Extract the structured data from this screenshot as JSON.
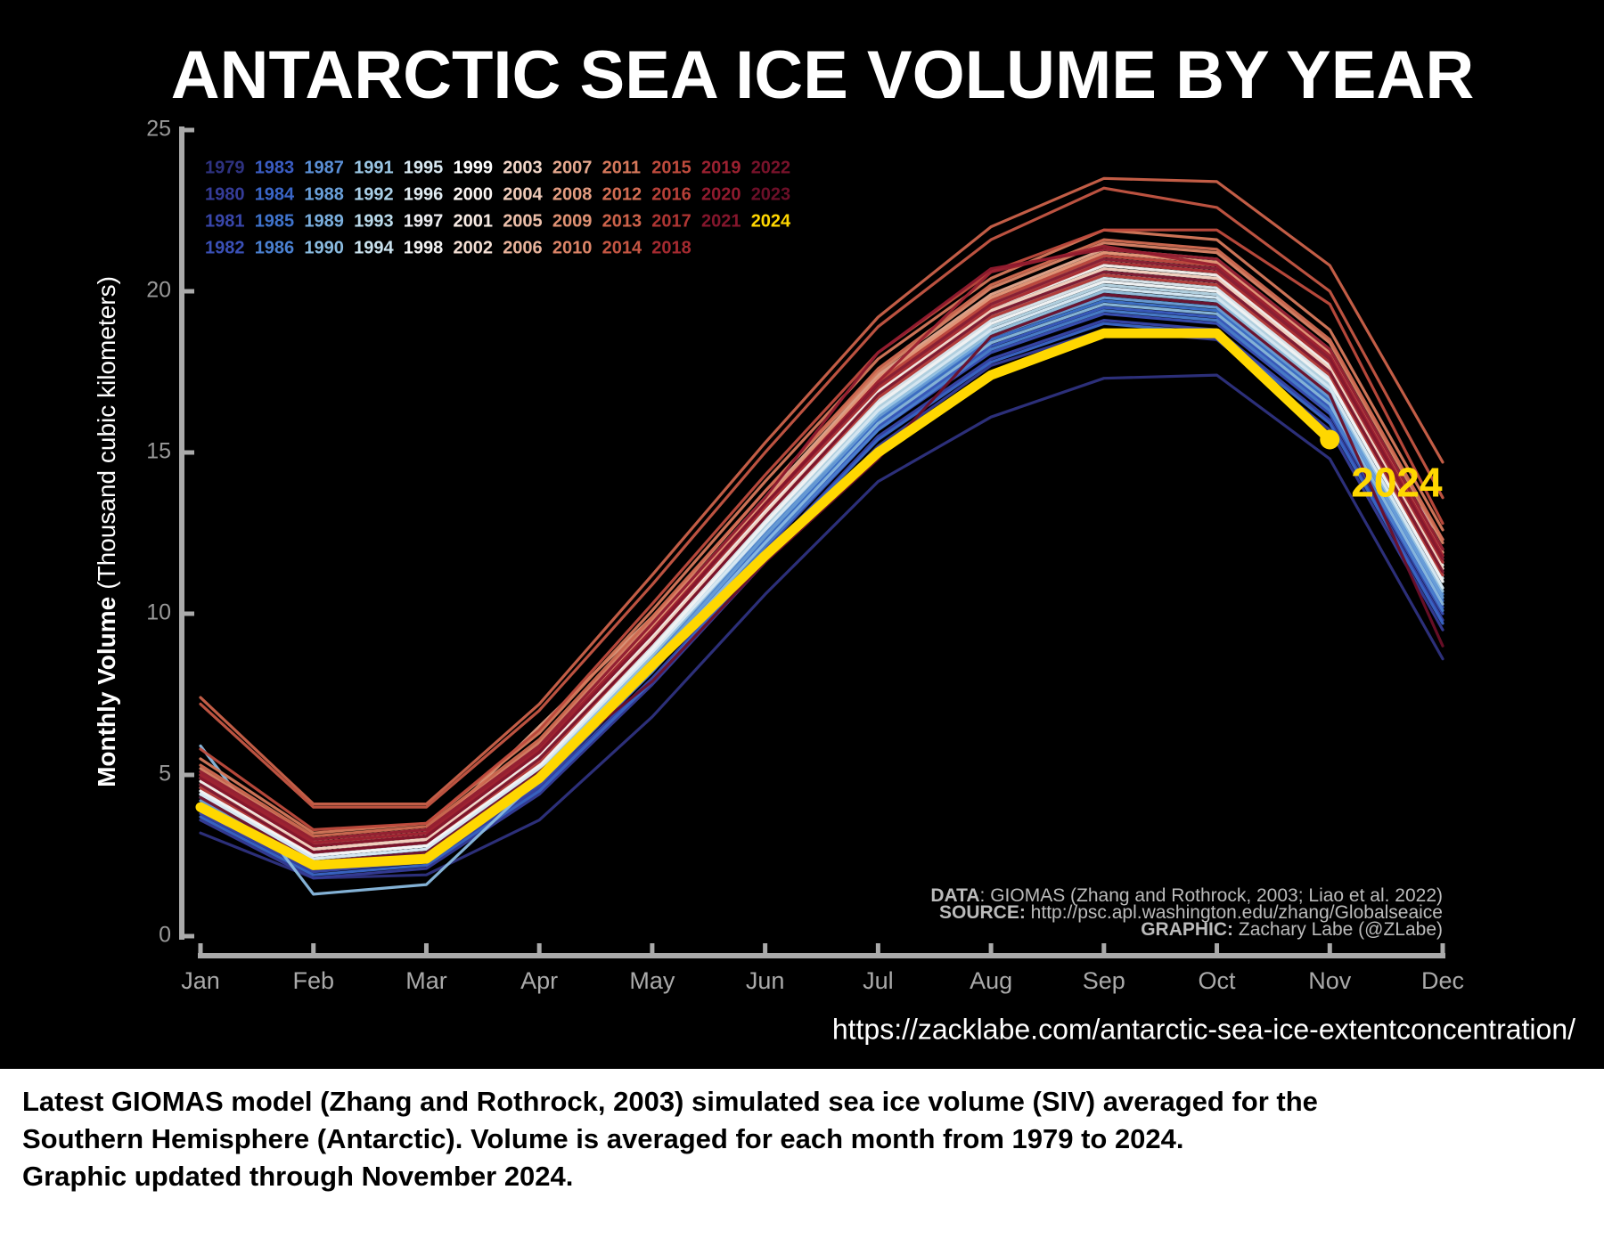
{
  "chart_data": {
    "type": "line",
    "title": "ANTARCTIC SEA ICE VOLUME BY YEAR",
    "ylabel": [
      "Monthly Volume",
      "(Thousand cubic kilometers)"
    ],
    "categories": [
      "Jan",
      "Feb",
      "Mar",
      "Apr",
      "May",
      "Jun",
      "Jul",
      "Aug",
      "Sep",
      "Oct",
      "Nov",
      "Dec"
    ],
    "ylim": [
      0,
      25
    ],
    "yticks": [
      0,
      5,
      10,
      15,
      20,
      25
    ],
    "credits": [
      [
        "DATA",
        ": GIOMAS (Zhang and Rothrock, 2003; Liao et al. 2022)"
      ],
      [
        "SOURCE:",
        " http://psc.apl.washington.edu/zhang/Globalseaice"
      ],
      [
        "GRAPHIC:",
        " Zachary Labe (@ZLabe)"
      ]
    ],
    "url": "https://zacklabe.com/antarctic-sea-ice-extentconcentration/",
    "series": [
      {
        "name": "1979",
        "color": "#2e3280",
        "values": [
          3.2,
          1.8,
          1.9,
          3.6,
          6.8,
          10.6,
          14.1,
          16.1,
          17.3,
          17.4,
          14.8,
          8.6
        ]
      },
      {
        "name": "1980",
        "color": "#353c98",
        "values": [
          3.6,
          1.8,
          2.1,
          4.4,
          7.8,
          11.6,
          15.2,
          17.7,
          18.8,
          18.5,
          15.7,
          9.5
        ]
      },
      {
        "name": "1981",
        "color": "#3846aa",
        "values": [
          3.8,
          2.0,
          2.3,
          4.6,
          8.0,
          11.8,
          15.5,
          17.9,
          19.1,
          18.8,
          16.0,
          9.8
        ]
      },
      {
        "name": "1982",
        "color": "#3a50b6",
        "values": [
          3.9,
          2.1,
          2.4,
          4.7,
          8.2,
          12.0,
          15.7,
          18.1,
          19.3,
          19.0,
          16.2,
          10.0
        ]
      },
      {
        "name": "1983",
        "color": "#3a5cc2",
        "values": [
          4.0,
          2.1,
          2.4,
          4.8,
          8.3,
          12.2,
          15.8,
          18.3,
          19.5,
          19.2,
          16.4,
          10.2
        ]
      },
      {
        "name": "1984",
        "color": "#3a66c8",
        "values": [
          3.7,
          1.9,
          2.2,
          4.5,
          7.9,
          11.8,
          15.4,
          17.8,
          19.0,
          18.7,
          15.9,
          9.7
        ]
      },
      {
        "name": "1985",
        "color": "#3f73cc",
        "values": [
          4.1,
          2.2,
          2.5,
          4.9,
          8.5,
          12.3,
          16.0,
          18.5,
          19.7,
          19.4,
          16.6,
          10.4
        ]
      },
      {
        "name": "1986",
        "color": "#4a80d0",
        "values": [
          4.0,
          2.1,
          2.4,
          4.8,
          8.2,
          12.1,
          15.7,
          18.2,
          19.4,
          19.1,
          16.3,
          10.1
        ]
      },
      {
        "name": "1987",
        "color": "#5a8fd6",
        "values": [
          4.3,
          2.3,
          2.6,
          5.1,
          8.6,
          12.5,
          16.2,
          18.6,
          19.9,
          19.6,
          16.8,
          10.6
        ]
      },
      {
        "name": "1988",
        "color": "#6aa0da",
        "values": [
          4.2,
          2.3,
          2.6,
          5.0,
          8.5,
          12.4,
          16.1,
          18.6,
          19.8,
          19.5,
          16.7,
          10.5
        ]
      },
      {
        "name": "1989",
        "color": "#7aaedd",
        "values": [
          4.4,
          2.4,
          2.7,
          5.2,
          8.8,
          12.6,
          16.3,
          18.8,
          20.1,
          19.8,
          17.0,
          10.8
        ]
      },
      {
        "name": "1990",
        "color": "#8abbe0",
        "values": [
          5.9,
          1.3,
          1.6,
          4.9,
          8.4,
          12.2,
          15.9,
          18.4,
          19.6,
          19.3,
          16.5,
          10.3
        ]
      },
      {
        "name": "1991",
        "color": "#9ac6e4",
        "values": [
          4.3,
          2.4,
          2.7,
          5.1,
          8.7,
          12.6,
          16.2,
          18.7,
          20.0,
          19.7,
          16.9,
          10.7
        ]
      },
      {
        "name": "1992",
        "color": "#aacfe7",
        "values": [
          4.5,
          2.5,
          2.8,
          5.3,
          8.9,
          12.8,
          16.5,
          19.0,
          20.3,
          20.0,
          17.2,
          11.0
        ]
      },
      {
        "name": "1993",
        "color": "#badaea",
        "values": [
          4.4,
          2.5,
          2.8,
          5.2,
          8.8,
          12.7,
          16.4,
          18.9,
          20.2,
          19.9,
          17.1,
          12.3
        ]
      },
      {
        "name": "1994",
        "color": "#cae2ee",
        "values": [
          4.6,
          2.6,
          2.9,
          5.4,
          9.1,
          13.0,
          16.7,
          19.2,
          20.5,
          20.2,
          17.4,
          11.2
        ]
      },
      {
        "name": "1995",
        "color": "#d8e8f1",
        "values": [
          4.4,
          2.4,
          2.7,
          5.2,
          8.8,
          12.6,
          16.3,
          18.8,
          20.1,
          19.8,
          17.0,
          10.8
        ]
      },
      {
        "name": "1996",
        "color": "#e2edf3",
        "values": [
          4.6,
          2.5,
          2.8,
          5.4,
          9.0,
          12.9,
          16.6,
          19.1,
          20.4,
          20.1,
          17.3,
          11.1
        ]
      },
      {
        "name": "1997",
        "color": "#ececf0",
        "values": [
          4.7,
          2.6,
          2.9,
          5.5,
          9.1,
          13.0,
          16.8,
          19.3,
          20.6,
          20.3,
          17.5,
          11.3
        ]
      },
      {
        "name": "1998",
        "color": "#f3f3f3",
        "values": [
          4.5,
          2.5,
          2.8,
          5.3,
          8.9,
          12.8,
          16.5,
          19.0,
          20.3,
          20.0,
          17.2,
          11.0
        ]
      },
      {
        "name": "1999",
        "color": "#ffffff",
        "values": [
          4.7,
          2.7,
          3.0,
          5.5,
          9.2,
          13.1,
          16.8,
          19.4,
          20.7,
          20.4,
          17.6,
          11.4
        ]
      },
      {
        "name": "2000",
        "color": "#fbf5f2",
        "values": [
          4.8,
          2.7,
          3.0,
          5.6,
          9.3,
          13.2,
          16.9,
          19.5,
          20.8,
          20.5,
          17.7,
          11.5
        ]
      },
      {
        "name": "2001",
        "color": "#f8ebe4",
        "values": [
          4.6,
          2.6,
          2.9,
          5.4,
          9.1,
          13.0,
          16.7,
          19.2,
          20.5,
          20.2,
          17.4,
          11.2
        ]
      },
      {
        "name": "2002",
        "color": "#f4dfd4",
        "values": [
          4.9,
          2.8,
          3.1,
          5.7,
          9.4,
          13.3,
          17.0,
          19.5,
          20.9,
          20.6,
          17.8,
          11.6
        ]
      },
      {
        "name": "2003",
        "color": "#f2d6c8",
        "values": [
          4.9,
          2.8,
          3.1,
          5.7,
          9.4,
          13.4,
          17.1,
          19.6,
          21.0,
          20.7,
          17.9,
          11.7
        ]
      },
      {
        "name": "2004",
        "color": "#efcbb9",
        "values": [
          4.7,
          2.7,
          3.0,
          5.5,
          9.2,
          13.1,
          16.8,
          19.4,
          20.7,
          20.4,
          17.6,
          11.4
        ]
      },
      {
        "name": "2005",
        "color": "#ecbfaa",
        "values": [
          5.0,
          2.9,
          3.2,
          5.8,
          9.6,
          13.5,
          17.3,
          19.8,
          21.2,
          20.9,
          18.1,
          11.9
        ]
      },
      {
        "name": "2006",
        "color": "#e8b39b",
        "values": [
          5.0,
          2.9,
          3.2,
          5.8,
          9.5,
          13.4,
          17.2,
          19.7,
          21.1,
          20.8,
          18.0,
          11.8
        ]
      },
      {
        "name": "2007",
        "color": "#e6a88e",
        "values": [
          5.1,
          3.0,
          3.3,
          5.9,
          9.7,
          13.6,
          17.4,
          19.9,
          21.3,
          21.0,
          18.2,
          12.0
        ]
      },
      {
        "name": "2008",
        "color": "#e39c80",
        "values": [
          4.9,
          2.8,
          3.1,
          6.5,
          9.9,
          13.3,
          17.0,
          19.5,
          20.9,
          20.6,
          17.8,
          11.6
        ]
      },
      {
        "name": "2009",
        "color": "#df9173",
        "values": [
          5.0,
          2.9,
          3.2,
          5.8,
          9.6,
          13.5,
          17.3,
          19.8,
          21.2,
          20.9,
          18.1,
          11.9
        ]
      },
      {
        "name": "2010",
        "color": "#db8467",
        "values": [
          5.2,
          3.0,
          3.3,
          6.0,
          9.8,
          13.8,
          17.5,
          20.1,
          21.5,
          21.2,
          18.4,
          12.2
        ]
      },
      {
        "name": "2011",
        "color": "#d6785b",
        "values": [
          5.5,
          3.2,
          3.5,
          6.3,
          10.1,
          14.1,
          17.9,
          20.4,
          21.9,
          21.6,
          18.8,
          12.6
        ]
      },
      {
        "name": "2012",
        "color": "#d26c52",
        "values": [
          5.3,
          3.1,
          3.4,
          6.1,
          9.9,
          13.8,
          17.6,
          20.2,
          21.6,
          21.3,
          18.5,
          12.3
        ]
      },
      {
        "name": "2013",
        "color": "#cc624a",
        "values": [
          7.4,
          4.1,
          4.1,
          7.2,
          11.2,
          15.3,
          19.2,
          22.0,
          23.5,
          23.4,
          20.8,
          14.7
        ]
      },
      {
        "name": "2014",
        "color": "#c55643",
        "values": [
          7.2,
          4.0,
          4.0,
          7.0,
          10.9,
          15.0,
          18.9,
          21.6,
          23.2,
          22.6,
          20.0,
          13.6
        ]
      },
      {
        "name": "2015",
        "color": "#bf4b3d",
        "values": [
          5.8,
          3.3,
          3.5,
          6.4,
          10.3,
          14.3,
          18.1,
          20.6,
          21.9,
          21.9,
          19.6,
          12.8
        ]
      },
      {
        "name": "2016",
        "color": "#b74038",
        "values": [
          5.0,
          2.9,
          3.2,
          5.8,
          9.5,
          13.4,
          17.2,
          19.7,
          21.1,
          20.8,
          18.0,
          11.8
        ]
      },
      {
        "name": "2017",
        "color": "#ae3533",
        "values": [
          4.6,
          2.6,
          2.9,
          5.4,
          9.1,
          13.0,
          16.7,
          19.2,
          20.5,
          20.2,
          17.4,
          11.2
        ]
      },
      {
        "name": "2018",
        "color": "#a52a30",
        "values": [
          4.9,
          2.8,
          3.1,
          5.7,
          9.4,
          13.3,
          17.0,
          19.5,
          20.9,
          20.6,
          17.8,
          11.6
        ]
      },
      {
        "name": "2019",
        "color": "#9b2130",
        "values": [
          5.0,
          2.9,
          3.2,
          5.8,
          9.5,
          13.4,
          17.2,
          20.6,
          21.4,
          20.8,
          18.0,
          11.8
        ]
      },
      {
        "name": "2020",
        "color": "#901a2e",
        "values": [
          5.1,
          3.0,
          3.3,
          5.9,
          9.7,
          13.6,
          18.1,
          20.7,
          21.3,
          21.0,
          18.2,
          12.0
        ]
      },
      {
        "name": "2021",
        "color": "#84162c",
        "values": [
          4.9,
          2.8,
          3.1,
          5.7,
          9.4,
          13.4,
          17.1,
          19.6,
          21.0,
          20.7,
          17.9,
          11.7
        ]
      },
      {
        "name": "2022",
        "color": "#78122a",
        "values": [
          4.7,
          2.6,
          2.9,
          5.5,
          9.1,
          13.0,
          16.8,
          19.3,
          20.6,
          20.3,
          17.5,
          11.3
        ]
      },
      {
        "name": "2023",
        "color": "#6c0f28",
        "values": [
          4.3,
          2.3,
          2.6,
          5.1,
          7.9,
          11.6,
          14.8,
          18.6,
          19.9,
          19.6,
          16.8,
          9.0
        ]
      },
      {
        "name": "2024",
        "color": "#ffd700",
        "values": [
          4.0,
          2.2,
          2.4,
          4.9,
          8.4,
          11.8,
          15.0,
          17.4,
          18.7,
          18.7,
          15.4,
          null
        ]
      }
    ]
  },
  "caption": [
    "Latest GIOMAS model (Zhang and Rothrock, 2003) simulated sea ice volume (SIV) averaged for the",
    "Southern Hemisphere (Antarctic).  Volume is averaged for each month from 1979 to 2024.",
    "Graphic updated through November 2024."
  ]
}
